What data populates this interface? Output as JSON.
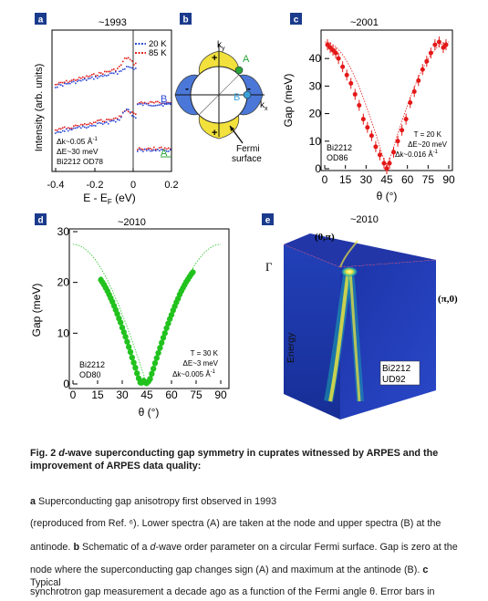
{
  "panels": {
    "a": {
      "letter": "a",
      "year": "~1993",
      "ylabel": "Intensity (arb. units)",
      "xlabel": "E - E",
      "xlabel_sub": "F",
      "xlabel_unit": " (eV)",
      "xticks": [
        "-0.4",
        "-0.2",
        "0",
        "0.2"
      ],
      "legend": [
        "20 K",
        "85 K"
      ],
      "curve_labels": [
        "B",
        "A"
      ],
      "note": [
        "Δk~0.05 Å",
        "ΔE~30 meV",
        "Bi2212 OD78"
      ],
      "note_sup": "-1",
      "colors": {
        "20K": "#2c4ad6",
        "85K": "#e02020"
      }
    },
    "b": {
      "letter": "b",
      "labels": {
        "ky": "k",
        "ky_sub": "y",
        "kx": "k",
        "kx_sub": "x",
        "A": "A",
        "B": "B",
        "plus": "+",
        "minus": "-",
        "fermi1": "Fermi",
        "fermi2": "surface"
      },
      "colors": {
        "plus": "#f2e13c",
        "minus": "#4b78d8",
        "A": "#2aa43a",
        "B": "#3aa0d8"
      }
    },
    "c": {
      "letter": "c",
      "year": "~2001",
      "ylabel": "Gap (meV)",
      "xlabel": "θ (°)",
      "yticks": [
        "0",
        "10",
        "20",
        "30",
        "40"
      ],
      "xticks": [
        "0",
        "15",
        "30",
        "45",
        "60",
        "75",
        "90"
      ],
      "sample": [
        "Bi2212",
        "OD86"
      ],
      "params": [
        "T = 20 K",
        "ΔE~20 meV",
        "Δk~0.016 Å"
      ],
      "params_sup": "-1",
      "color": "#e41818"
    },
    "d": {
      "letter": "d",
      "year": "~2010",
      "ylabel": "Gap (meV)",
      "xlabel": "θ (°)",
      "yticks": [
        "0",
        "10",
        "20",
        "30"
      ],
      "xticks": [
        "0",
        "15",
        "30",
        "45",
        "60",
        "75",
        "90"
      ],
      "sample": [
        "Bi2212",
        "OD80"
      ],
      "params": [
        "T = 30 K",
        "ΔE~3 meV",
        "Δk~0.005 Å"
      ],
      "params_sup": "-1",
      "color": "#22c21e"
    },
    "e": {
      "letter": "e",
      "year": "~2010",
      "labels": {
        "top": "(0,π)",
        "gamma": "Γ",
        "right": "(π,0)",
        "energy": "Energy",
        "sample1": "Bi2212",
        "sample2": "UD92"
      }
    }
  },
  "caption": {
    "bold1": "Fig. 2 ",
    "bold_italic": "d",
    "bold2": "-wave superconducting gap symmetry in cuprates witnessed by ARPES and the improvement of ARPES data quality: ",
    "lines": [
      {
        "b": "a",
        "t": " Superconducting gap anisotropy first observed in 1993"
      },
      {
        "t": "(reproduced from Ref. ⁶). Lower spectra (A) are taken at the node and upper spectra (B) at the"
      },
      {
        "t": "antinode. ",
        "b": "b",
        "t2": " Schematic of a ",
        "i": "d",
        "t3": "-wave order parameter on a circular Fermi surface. Gap is zero at the"
      },
      {
        "t": "node where the superconducting gap changes sign (A) and maximum at the antinode (B). ",
        "b": "c",
        "t2": " Typical"
      },
      {
        "t": "synchrotron gap measurement a decade ago as a function of the Fermi angle θ. Error bars in"
      }
    ]
  },
  "chart_data": [
    {
      "type": "scatter",
      "panel": "c",
      "x": [
        2,
        4,
        6,
        8,
        10,
        13,
        16,
        19,
        22,
        25,
        28,
        31,
        34,
        37,
        40,
        43,
        45,
        47,
        50,
        53,
        56,
        59,
        62,
        65,
        68,
        71,
        74,
        77,
        80,
        83,
        86,
        88
      ],
      "y": [
        45,
        44,
        43,
        42,
        40,
        37,
        34,
        31,
        27,
        23,
        18,
        15,
        12,
        8,
        5,
        2,
        0,
        2,
        6,
        10,
        14,
        18,
        24,
        28,
        32,
        36,
        39,
        42,
        45,
        46,
        44,
        45
      ],
      "xlabel": "θ (°)",
      "ylabel": "Gap (meV)",
      "xlim": [
        0,
        90
      ],
      "ylim": [
        0,
        48
      ]
    },
    {
      "type": "scatter",
      "panel": "d",
      "x": [
        17,
        18,
        19,
        20,
        21,
        22,
        23,
        24,
        25,
        26,
        27,
        28,
        29,
        30,
        31,
        32,
        33,
        34,
        35,
        36,
        37,
        38,
        39,
        40,
        41,
        42,
        43,
        44,
        45,
        46,
        47,
        48,
        49,
        50,
        51,
        52,
        53,
        54,
        55,
        56,
        57,
        58,
        59,
        60,
        61,
        62,
        63,
        64,
        65,
        66,
        67,
        68,
        69,
        70,
        71,
        72,
        73
      ],
      "y": [
        20.5,
        20.0,
        19.5,
        18.9,
        18.3,
        17.6,
        16.9,
        16.2,
        15.4,
        14.6,
        13.8,
        12.9,
        12.1,
        11.1,
        10.2,
        9.3,
        8.3,
        7.3,
        6.3,
        5.2,
        4.2,
        3.2,
        2.1,
        1.1,
        0.3,
        0.3,
        0.6,
        0.3,
        0.2,
        0.5,
        1.0,
        2.0,
        3.0,
        4.1,
        5.1,
        6.1,
        7.1,
        8.1,
        9.1,
        10.0,
        11.0,
        11.9,
        12.8,
        13.6,
        14.5,
        15.3,
        16.1,
        16.8,
        17.6,
        18.3,
        18.9,
        19.5,
        20.1,
        20.6,
        21.1,
        21.6,
        22.0
      ],
      "fit": "27.5*|cos(2θ)|",
      "xlabel": "θ (°)",
      "ylabel": "Gap (meV)",
      "xlim": [
        0,
        90
      ],
      "ylim": [
        0,
        30
      ]
    }
  ]
}
